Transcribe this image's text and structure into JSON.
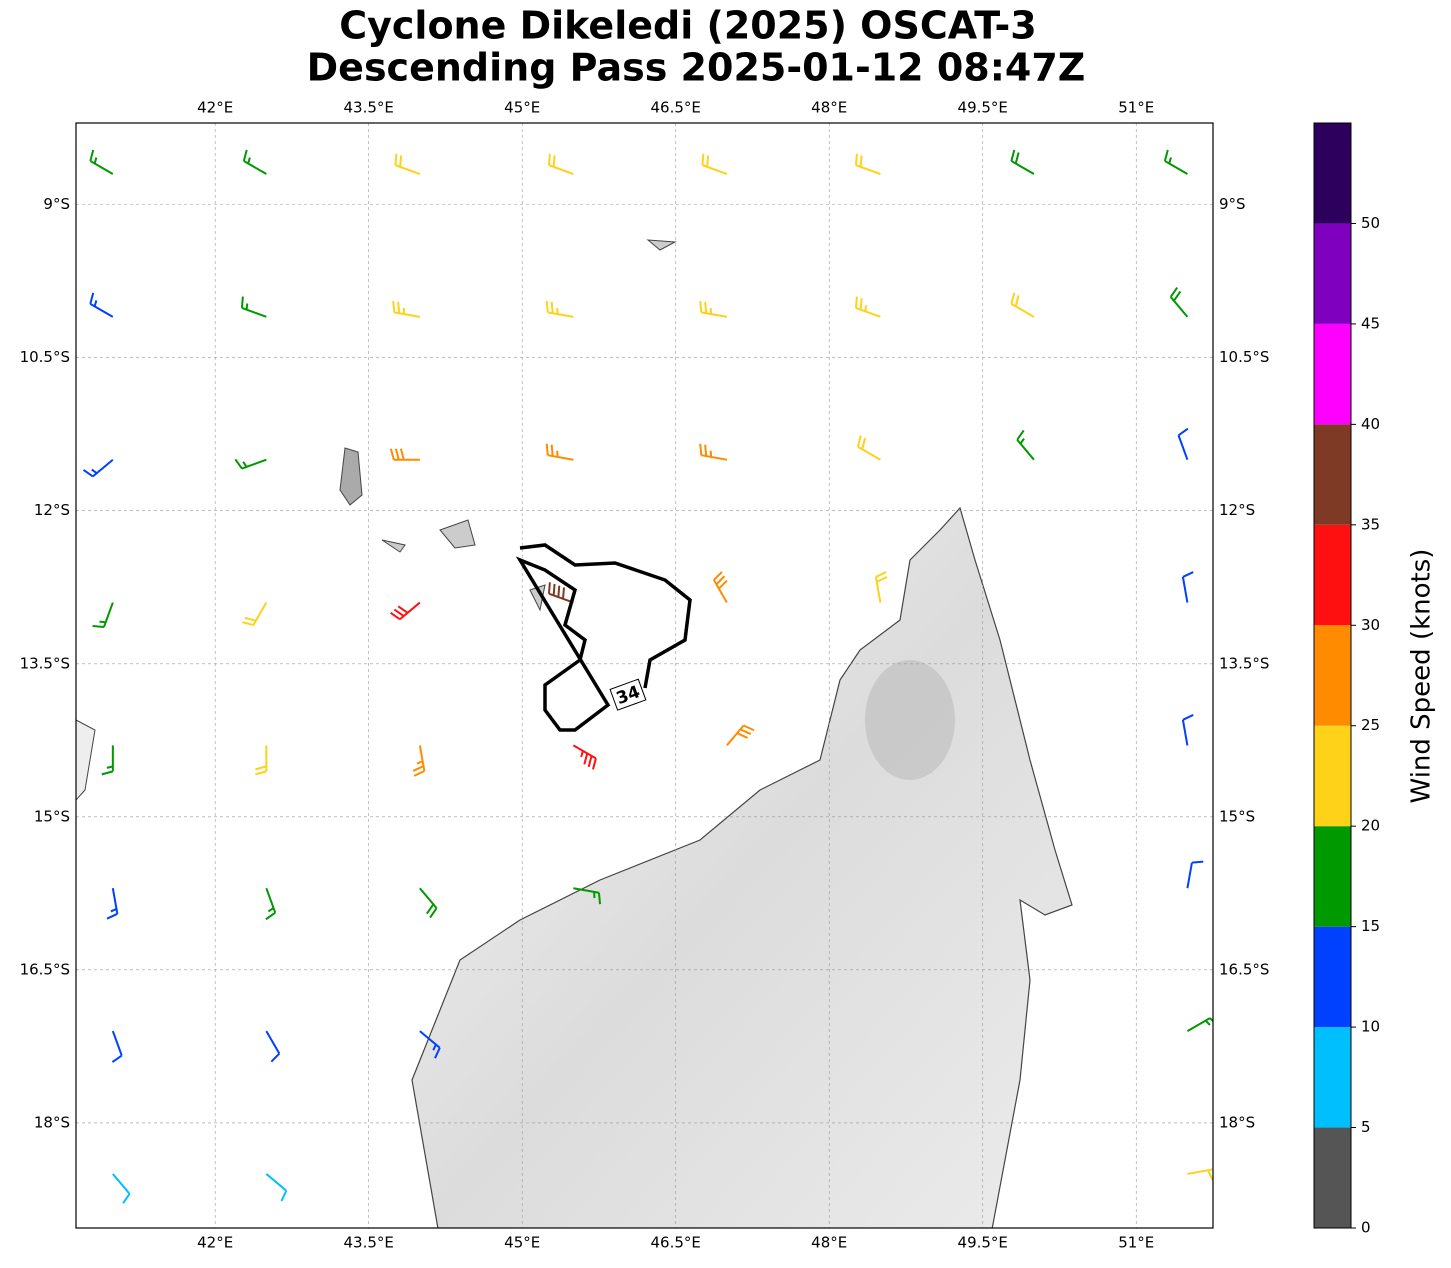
{
  "chart_data": {
    "type": "barbs",
    "title": [
      "Cyclone Dikeledi (2025) OSCAT-3",
      "Descending Pass 2025-01-12 08:47Z"
    ],
    "xlim": [
      40.64,
      51.75
    ],
    "ylim": [
      -19.03,
      -8.2
    ],
    "xticks": [
      {
        "value": 42,
        "label": "42°E"
      },
      {
        "value": 43.5,
        "label": "43.5°E"
      },
      {
        "value": 45,
        "label": "45°E"
      },
      {
        "value": 46.5,
        "label": "46.5°E"
      },
      {
        "value": 48,
        "label": "48°E"
      },
      {
        "value": 49.5,
        "label": "49.5°E"
      },
      {
        "value": 51,
        "label": "51°E"
      }
    ],
    "yticks": [
      {
        "value": -9,
        "label": "9°S"
      },
      {
        "value": -10.5,
        "label": "10.5°S"
      },
      {
        "value": -12,
        "label": "12°S"
      },
      {
        "value": -13.5,
        "label": "13.5°S"
      },
      {
        "value": -15,
        "label": "15°S"
      },
      {
        "value": -16.5,
        "label": "16.5°S"
      },
      {
        "value": -18,
        "label": "18°S"
      }
    ],
    "grid": true,
    "contour_level": 34,
    "colorbar": {
      "label": "Wind Speed (knots)",
      "lim": [
        0,
        55
      ],
      "bounds": [
        0,
        5,
        10,
        15,
        20,
        25,
        30,
        35,
        40,
        45,
        50,
        55
      ],
      "colors": [
        "#555555",
        "#00bfff",
        "#0040ff",
        "#009900",
        "#ffd21a",
        "#ff8c00",
        "#ff1010",
        "#7f3a26",
        "#ff00ff",
        "#8000c0",
        "#2e005e"
      ],
      "ticks": [
        0,
        5,
        10,
        15,
        20,
        25,
        30,
        35,
        40,
        45,
        50
      ]
    },
    "barbs": {
      "lons": [
        41,
        42.5,
        44,
        45.5,
        47,
        48.5,
        50,
        51.5
      ],
      "lats": [
        -8.7,
        -10.1,
        -11.5,
        -12.9,
        -14.3,
        -15.7,
        -17.1,
        -18.5
      ],
      "speed": [
        [
          17,
          17,
          22,
          22,
          22,
          22,
          18,
          17
        ],
        [
          13,
          17,
          23,
          23,
          24,
          23,
          22,
          18
        ],
        [
          13,
          17,
          28,
          27,
          27,
          22,
          17,
          12
        ],
        [
          17,
          22,
          32,
          38,
          28,
          22,
          null,
          12
        ],
        [
          17,
          22,
          27,
          33,
          28,
          null,
          null,
          12
        ],
        [
          13,
          17,
          18,
          17,
          null,
          null,
          null,
          12
        ],
        [
          12,
          12,
          13,
          null,
          null,
          null,
          null,
          17
        ],
        [
          8,
          8,
          null,
          null,
          null,
          null,
          null,
          20
        ]
      ],
      "dir": [
        [
          300,
          300,
          290,
          290,
          290,
          290,
          300,
          300
        ],
        [
          300,
          290,
          280,
          280,
          280,
          290,
          300,
          320
        ],
        [
          230,
          250,
          270,
          280,
          280,
          300,
          320,
          340
        ],
        [
          200,
          210,
          230,
          290,
          330,
          350,
          null,
          350
        ],
        [
          180,
          180,
          170,
          120,
          40,
          null,
          null,
          350
        ],
        [
          170,
          160,
          140,
          100,
          null,
          null,
          null,
          10
        ],
        [
          160,
          150,
          130,
          null,
          null,
          null,
          null,
          60
        ],
        [
          140,
          130,
          null,
          null,
          null,
          null,
          null,
          80
        ]
      ]
    }
  }
}
